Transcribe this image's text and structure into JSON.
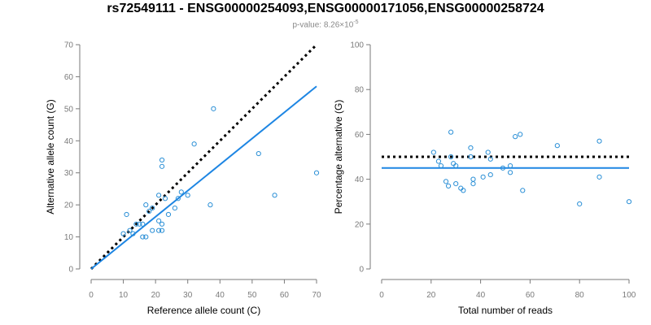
{
  "title": "rs72549111 - ENSG00000254093,ENSG00000171056,ENSG00000258724",
  "subtitle": {
    "prefix": "p-value: 8.26×10",
    "exponent": "-5"
  },
  "colors": {
    "points": "#2a8fd6",
    "fit_line": "#1e86e3",
    "reference_line": "#000000",
    "axis": "#7a7a7a"
  },
  "chart_data": [
    {
      "type": "scatter",
      "xlabel": "Reference allele count (C)",
      "ylabel": "Alternative allele count (G)",
      "xlim": [
        0,
        70
      ],
      "ylim": [
        0,
        70
      ],
      "xticks": [
        0,
        10,
        20,
        30,
        40,
        50,
        60,
        70
      ],
      "yticks": [
        0,
        10,
        20,
        30,
        40,
        50,
        60,
        70
      ],
      "points": [
        [
          10,
          11
        ],
        [
          11,
          17
        ],
        [
          12,
          12
        ],
        [
          13,
          11
        ],
        [
          14,
          14
        ],
        [
          15,
          14
        ],
        [
          16,
          10
        ],
        [
          16,
          14
        ],
        [
          17,
          10
        ],
        [
          17,
          20
        ],
        [
          18,
          18
        ],
        [
          19,
          12
        ],
        [
          19,
          19
        ],
        [
          21,
          12
        ],
        [
          21,
          23
        ],
        [
          21,
          15
        ],
        [
          22,
          12
        ],
        [
          22,
          14
        ],
        [
          22,
          32
        ],
        [
          22,
          34
        ],
        [
          23,
          22
        ],
        [
          24,
          17
        ],
        [
          26,
          19
        ],
        [
          27,
          22
        ],
        [
          28,
          24
        ],
        [
          30,
          23
        ],
        [
          32,
          39
        ],
        [
          37,
          20
        ],
        [
          38,
          50
        ],
        [
          52,
          36
        ],
        [
          57,
          23
        ],
        [
          70,
          30
        ]
      ],
      "reference_line": {
        "x": [
          0,
          70
        ],
        "y": [
          0,
          70
        ],
        "style": "dotted"
      },
      "fit_line": {
        "x": [
          0,
          70
        ],
        "y": [
          0,
          57
        ],
        "style": "solid"
      }
    },
    {
      "type": "scatter",
      "xlabel": "Total number of reads",
      "ylabel": "Percentage alternative (G)",
      "xlim": [
        0,
        100
      ],
      "ylim": [
        0,
        100
      ],
      "xticks": [
        0,
        20,
        40,
        60,
        80,
        100
      ],
      "yticks": [
        0,
        20,
        40,
        60,
        80,
        100
      ],
      "points": [
        [
          21,
          52
        ],
        [
          23,
          48
        ],
        [
          24,
          46
        ],
        [
          26,
          39
        ],
        [
          27,
          37
        ],
        [
          28,
          61
        ],
        [
          28,
          50
        ],
        [
          29,
          47
        ],
        [
          30,
          46
        ],
        [
          30,
          38
        ],
        [
          32,
          36
        ],
        [
          33,
          35
        ],
        [
          36,
          50
        ],
        [
          36,
          54
        ],
        [
          37,
          40
        ],
        [
          37,
          38
        ],
        [
          41,
          41
        ],
        [
          43,
          52
        ],
        [
          44,
          42
        ],
        [
          44,
          49
        ],
        [
          49,
          45
        ],
        [
          52,
          46
        ],
        [
          52,
          43
        ],
        [
          54,
          59
        ],
        [
          56,
          60
        ],
        [
          57,
          35
        ],
        [
          71,
          55
        ],
        [
          80,
          29
        ],
        [
          88,
          57
        ],
        [
          88,
          41
        ],
        [
          100,
          30
        ]
      ],
      "reference_line": {
        "x": [
          0,
          100
        ],
        "y": [
          50,
          50
        ],
        "style": "dotted"
      },
      "fit_line": {
        "x": [
          0,
          100
        ],
        "y": [
          45,
          45
        ],
        "style": "solid"
      }
    }
  ]
}
